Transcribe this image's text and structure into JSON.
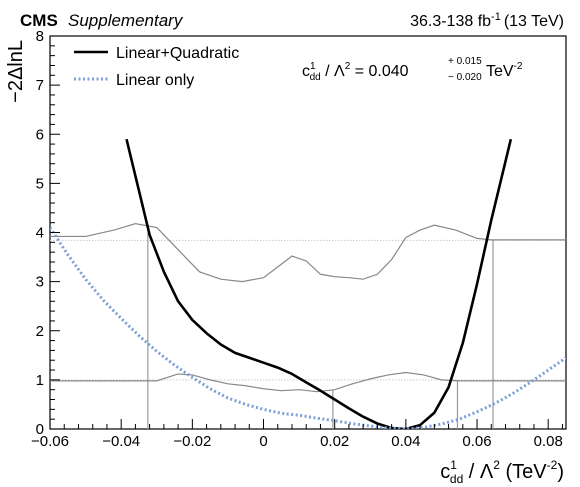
{
  "header": {
    "experiment": "CMS",
    "tag": "Supplementary",
    "lumi_value": "36.3-138 fb",
    "lumi_exp": "-1",
    "energy": "(13 TeV)"
  },
  "result": {
    "symbol": "c",
    "sup": "1",
    "sub": "dd",
    "mid": " / Λ",
    "mid_sup": "2",
    "eq": " = 0.040",
    "err_up": "+ 0.015",
    "err_down": "− 0.020",
    "unit": " TeV",
    "unit_sup": "-2"
  },
  "axes": {
    "y_title": "−2ΔlnL",
    "x_title_symbol": "c",
    "x_title_sup": "1",
    "x_title_sub": "dd",
    "x_title_rest": " / Λ",
    "x_title_rest_sup": "2",
    "x_title_unit": " (TeV",
    "x_title_unit_sup": "-2",
    "x_title_close": ")"
  },
  "chart_data": {
    "type": "line",
    "xlim": [
      -0.06,
      0.085
    ],
    "ylim": [
      0,
      8
    ],
    "x_ticks": [
      {
        "v": -0.06,
        "label": "−0.06"
      },
      {
        "v": -0.04,
        "label": "−0.04"
      },
      {
        "v": -0.02,
        "label": "−0.02"
      },
      {
        "v": 0,
        "label": "0"
      },
      {
        "v": 0.02,
        "label": "0.02"
      },
      {
        "v": 0.04,
        "label": "0.04"
      },
      {
        "v": 0.06,
        "label": "0.06"
      },
      {
        "v": 0.08,
        "label": "0.08"
      }
    ],
    "y_ticks": [
      {
        "v": 0,
        "label": "0"
      },
      {
        "v": 1,
        "label": "1"
      },
      {
        "v": 2,
        "label": "2"
      },
      {
        "v": 3,
        "label": "3"
      },
      {
        "v": 4,
        "label": "4"
      },
      {
        "v": 5,
        "label": "5"
      },
      {
        "v": 6,
        "label": "6"
      },
      {
        "v": 7,
        "label": "7"
      },
      {
        "v": 8,
        "label": "8"
      }
    ],
    "legend_position": "top-left",
    "grid": false,
    "series": [
      {
        "name": "Linear+Quadratic",
        "color": "#000000",
        "style": "solid",
        "x": [
          -0.0385,
          -0.035,
          -0.032,
          -0.028,
          -0.024,
          -0.02,
          -0.016,
          -0.012,
          -0.008,
          -0.004,
          0.0,
          0.004,
          0.008,
          0.012,
          0.016,
          0.02,
          0.024,
          0.028,
          0.032,
          0.036,
          0.04,
          0.044,
          0.048,
          0.052,
          0.056,
          0.06,
          0.064,
          0.068,
          0.0695
        ],
        "y": [
          5.9,
          4.85,
          3.95,
          3.2,
          2.6,
          2.22,
          1.95,
          1.72,
          1.55,
          1.45,
          1.35,
          1.25,
          1.12,
          0.95,
          0.78,
          0.6,
          0.42,
          0.25,
          0.11,
          0.02,
          0.0,
          0.08,
          0.33,
          0.85,
          1.75,
          2.95,
          4.25,
          5.45,
          5.9
        ]
      },
      {
        "name": "Linear only",
        "color": "#7b9fd6",
        "style": "dotted",
        "x": [
          -0.06,
          -0.055,
          -0.05,
          -0.045,
          -0.04,
          -0.035,
          -0.03,
          -0.025,
          -0.02,
          -0.015,
          -0.01,
          -0.005,
          0.0,
          0.005,
          0.01,
          0.015,
          0.02,
          0.025,
          0.03,
          0.035,
          0.04,
          0.045,
          0.05,
          0.055,
          0.06,
          0.065,
          0.07,
          0.075,
          0.08,
          0.085
        ],
        "y": [
          4.1,
          3.55,
          3.05,
          2.62,
          2.25,
          1.9,
          1.58,
          1.3,
          1.05,
          0.82,
          0.63,
          0.5,
          0.4,
          0.32,
          0.28,
          0.22,
          0.17,
          0.11,
          0.06,
          0.02,
          0.0,
          0.03,
          0.1,
          0.2,
          0.35,
          0.52,
          0.72,
          0.95,
          1.2,
          1.45
        ]
      }
    ],
    "guide_lines": [
      {
        "axis": "y",
        "value": 1,
        "color": "#cccccc"
      },
      {
        "axis": "y",
        "value": 3.84,
        "color": "#cccccc"
      }
    ],
    "interval_markers": [
      {
        "x": -0.0325,
        "y": 4.0
      },
      {
        "x": 0.0195,
        "y": 0.8
      },
      {
        "x": 0.0545,
        "y": 1.0
      },
      {
        "x": 0.0645,
        "y": 3.85
      }
    ],
    "inset_curves": [
      {
        "color": "#888888",
        "x": [
          -0.06,
          -0.05,
          -0.042,
          -0.036,
          -0.03,
          -0.024,
          -0.018,
          -0.012,
          -0.006,
          0.0,
          0.004,
          0.008,
          0.012,
          0.016,
          0.02,
          0.024,
          0.028,
          0.032,
          0.036,
          0.04,
          0.044,
          0.048,
          0.054,
          0.06,
          0.064,
          0.07,
          0.08,
          0.085
        ],
        "y": [
          3.92,
          3.92,
          4.05,
          4.18,
          4.1,
          3.65,
          3.2,
          3.05,
          3.0,
          3.08,
          3.3,
          3.52,
          3.42,
          3.15,
          3.1,
          3.08,
          3.05,
          3.15,
          3.45,
          3.9,
          4.05,
          4.15,
          4.05,
          3.88,
          3.85,
          3.85,
          3.85,
          3.85
        ]
      },
      {
        "color": "#888888",
        "x": [
          -0.06,
          -0.04,
          -0.03,
          -0.024,
          -0.02,
          -0.015,
          -0.01,
          -0.005,
          0.0,
          0.005,
          0.01,
          0.015,
          0.02,
          0.025,
          0.03,
          0.035,
          0.04,
          0.045,
          0.05,
          0.055,
          0.06,
          0.07,
          0.085
        ],
        "y": [
          0.98,
          0.98,
          0.98,
          1.12,
          1.1,
          1.0,
          0.92,
          0.88,
          0.82,
          0.78,
          0.8,
          0.76,
          0.8,
          0.92,
          1.02,
          1.1,
          1.15,
          1.1,
          1.0,
          0.98,
          0.98,
          0.98,
          0.98
        ]
      }
    ]
  }
}
